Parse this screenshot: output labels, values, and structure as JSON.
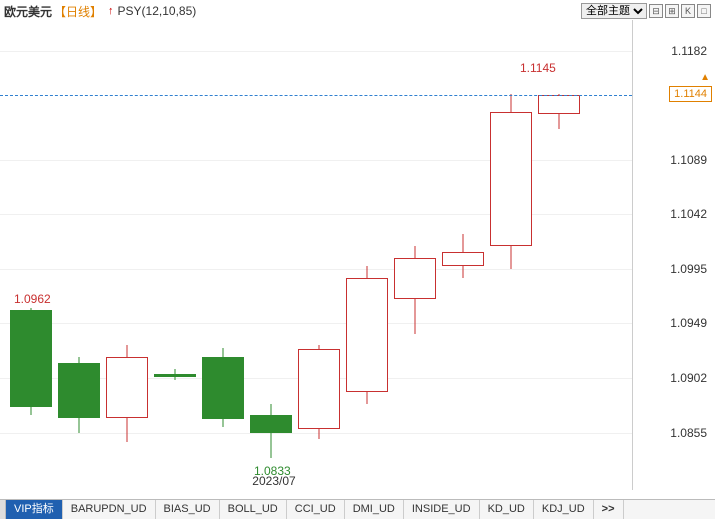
{
  "header": {
    "title": "欧元美元",
    "period": "【日线】",
    "arrow": "↑",
    "indicator": "PSY(12,10,85)",
    "theme_label": "全部主题",
    "icons": [
      "-icon",
      "+icon",
      "k-icon",
      "o-icon"
    ]
  },
  "chart": {
    "type": "candlestick",
    "ymin": 1.083,
    "ymax": 1.12,
    "yticks": [
      1.0855,
      1.0902,
      1.0949,
      1.0995,
      1.1042,
      1.1089,
      1.1182
    ],
    "last_price": 1.1144,
    "high_label": {
      "value": "1.1145",
      "y": 1.116
    },
    "low_label": {
      "value": "1.0833",
      "y": 1.0833
    },
    "left_label": {
      "value": "1.0962",
      "y": 1.0962
    },
    "xlabel": {
      "text": "2023/07",
      "x": 5.5
    },
    "candle_width": 42,
    "candle_gap": 6,
    "left_pad": 10,
    "colors": {
      "up_border": "#c83030",
      "up_fill": "#ffffff",
      "down_fill": "#2e8b2e",
      "grid": "#f0f0f0",
      "last_line": "#3080d0",
      "last_box": "#e08000"
    },
    "candles": [
      {
        "o": 1.096,
        "h": 1.0962,
        "l": 1.087,
        "c": 1.0877,
        "dir": "down"
      },
      {
        "o": 1.0915,
        "h": 1.092,
        "l": 1.0855,
        "c": 1.0868,
        "dir": "down"
      },
      {
        "o": 1.0868,
        "h": 1.093,
        "l": 1.0847,
        "c": 1.092,
        "dir": "up"
      },
      {
        "o": 1.0905,
        "h": 1.091,
        "l": 1.09,
        "c": 1.0903,
        "dir": "down"
      },
      {
        "o": 1.092,
        "h": 1.0928,
        "l": 1.086,
        "c": 1.0867,
        "dir": "down"
      },
      {
        "o": 1.087,
        "h": 1.088,
        "l": 1.0833,
        "c": 1.0855,
        "dir": "down"
      },
      {
        "o": 1.0858,
        "h": 1.093,
        "l": 1.085,
        "c": 1.0927,
        "dir": "up"
      },
      {
        "o": 1.089,
        "h": 1.0998,
        "l": 1.088,
        "c": 1.0988,
        "dir": "up"
      },
      {
        "o": 1.097,
        "h": 1.1015,
        "l": 1.094,
        "c": 1.1005,
        "dir": "up"
      },
      {
        "o": 1.0998,
        "h": 1.1025,
        "l": 1.0988,
        "c": 1.101,
        "dir": "up"
      },
      {
        "o": 1.1015,
        "h": 1.1145,
        "l": 1.0995,
        "c": 1.113,
        "dir": "up"
      },
      {
        "o": 1.1128,
        "h": 1.1145,
        "l": 1.1115,
        "c": 1.1144,
        "dir": "up"
      }
    ]
  },
  "tabs": {
    "active": "VIP指标",
    "items": [
      "VIP指标",
      "BARUPDN_UD",
      "BIAS_UD",
      "BOLL_UD",
      "CCI_UD",
      "DMI_UD",
      "INSIDE_UD",
      "KD_UD",
      "KDJ_UD"
    ],
    "more": ">>"
  }
}
